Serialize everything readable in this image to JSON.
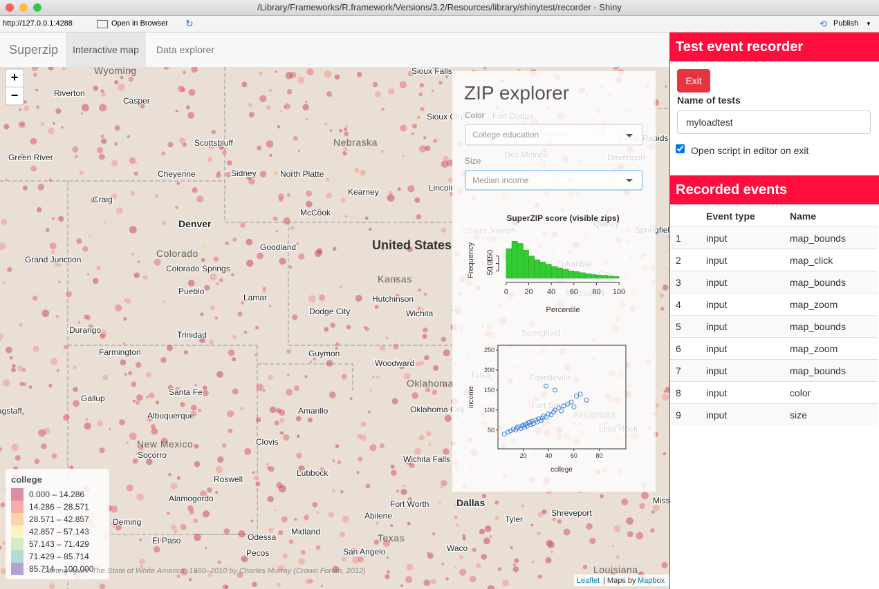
{
  "window": {
    "title": "/Library/Frameworks/R.framework/Versions/3.2/Resources/library/shinytest/recorder - Shiny"
  },
  "toolbar": {
    "url": "http://127.0.0.1:4288",
    "open": "Open in Browser",
    "publish": "Publish"
  },
  "app": {
    "brand": "Superzip",
    "tabs": [
      "Interactive map",
      "Data explorer"
    ]
  },
  "map": {
    "zoom_in": "+",
    "zoom_out": "−",
    "regions": [
      "Wyoming",
      "Nebraska",
      "United States",
      "Colorado",
      "Kansas",
      "Oklahoma",
      "New Mexico",
      "Texas",
      "Iowa",
      "Missouri",
      "Arkansas",
      "Louisiana"
    ],
    "cities": [
      "Sioux Falls",
      "Riverton",
      "Casper",
      "Scottsbluff",
      "Green River",
      "Cheyenne",
      "Sidney",
      "North Platte",
      "Kearney",
      "Lincoln",
      "Craig",
      "McCook",
      "Denver",
      "Goodland",
      "Grand Junction",
      "Colorado Springs",
      "Pueblo",
      "Lamar",
      "Hutchinson",
      "Dodge City",
      "Wichita",
      "Durango",
      "Trinidad",
      "Farmington",
      "Guymon",
      "Woodward",
      "Santa Fe",
      "Gallup",
      "Flagstaff",
      "Albuquerque",
      "Amarillo",
      "Oklahoma City",
      "Clovis",
      "Socorro",
      "Wichita Falls",
      "Lubbock",
      "Roswell",
      "Alamogordo",
      "Fort Worth",
      "Dallas",
      "Shreveport",
      "Abilene",
      "Deming",
      "Tyler",
      "Odessa",
      "Midland",
      "El Paso",
      "Waco",
      "Pecos",
      "San Angelo",
      "Sioux City",
      "Fort Dodge",
      "Des Moines",
      "Cedar Rapids",
      "Davenport",
      "Saint Joseph",
      "Quincy",
      "Springfield",
      "Columbia",
      "Jefferson City",
      "Springfield",
      "Tulsa",
      "Fayetteville",
      "Fort Smith",
      "Little Rock",
      "Miss"
    ],
    "attribution": "Coming Apart: The State of White America, 1960–2010 by Charles Murray (Crown Forum, 2012)",
    "leaflet": "Leaflet",
    "maps_by": "| Maps by",
    "mapbox": "Mapbox"
  },
  "panel": {
    "title": "ZIP explorer",
    "color_label": "Color",
    "color_value": "College education",
    "size_label": "Size",
    "size_value": "Median income"
  },
  "histogram": {
    "type": "histogram",
    "title": "SuperZIP score (visible zips)",
    "x_label": "Percentile",
    "y_label": "Frequency",
    "color": "#33cc33",
    "bins": [
      0,
      5,
      10,
      15,
      20,
      25,
      30,
      35,
      40,
      45,
      50,
      55,
      60,
      65,
      70,
      75,
      80,
      85,
      90,
      95,
      100
    ],
    "values": [
      200,
      250,
      235,
      190,
      150,
      125,
      110,
      95,
      80,
      70,
      60,
      50,
      45,
      38,
      30,
      25,
      22,
      20,
      15,
      12
    ],
    "xlim": [
      -3,
      103
    ],
    "xticks": [
      0,
      20,
      40,
      60,
      80,
      100
    ],
    "ylim": [
      0,
      270
    ],
    "yticks": [
      50,
      100,
      150
    ]
  },
  "scatter": {
    "type": "scatter",
    "x_label": "college",
    "y_label": "income",
    "color": "#3b7de0",
    "x": [
      5,
      8,
      10,
      12,
      14,
      15,
      16,
      18,
      19,
      20,
      21,
      22,
      23,
      24,
      25,
      26,
      27,
      28,
      30,
      31,
      32,
      34,
      35,
      36,
      38,
      40,
      42,
      44,
      45,
      48,
      50,
      52,
      55,
      58,
      60,
      62,
      65,
      70,
      45,
      38
    ],
    "values": [
      40,
      45,
      48,
      52,
      50,
      55,
      58,
      54,
      60,
      62,
      57,
      65,
      60,
      68,
      70,
      64,
      72,
      66,
      75,
      70,
      78,
      74,
      80,
      85,
      82,
      90,
      88,
      95,
      100,
      105,
      98,
      110,
      115,
      120,
      108,
      135,
      140,
      125,
      150,
      160
    ],
    "xlim": [
      0,
      101
    ],
    "xticks": [
      20,
      40,
      60,
      80
    ],
    "ylim": [
      3,
      262
    ],
    "yticks": [
      50,
      100,
      150,
      200,
      250
    ]
  },
  "legend": {
    "title": "college",
    "items": [
      {
        "label": "0.000 – 14.286",
        "color": "#d8819b"
      },
      {
        "label": "14.286 – 28.571",
        "color": "#f5a4a0"
      },
      {
        "label": "28.571 – 42.857",
        "color": "#fbd0a0"
      },
      {
        "label": "42.857 – 57.143",
        "color": "#fdf2b8"
      },
      {
        "label": "57.143 – 71.429",
        "color": "#cfe9c0"
      },
      {
        "label": "71.429 – 85.714",
        "color": "#a9d8d2"
      },
      {
        "label": "85.714 – 100.000",
        "color": "#a99ad0"
      }
    ]
  },
  "recorder": {
    "title": "Test event recorder",
    "exit": "Exit",
    "name_label": "Name of tests",
    "name_value": "myloadtest",
    "checkbox": "Open script in editor on exit",
    "events_title": "Recorded events",
    "columns": [
      "Event type",
      "Name"
    ],
    "rows": [
      [
        1,
        "input",
        "map_bounds"
      ],
      [
        2,
        "input",
        "map_click"
      ],
      [
        3,
        "input",
        "map_bounds"
      ],
      [
        4,
        "input",
        "map_zoom"
      ],
      [
        5,
        "input",
        "map_bounds"
      ],
      [
        6,
        "input",
        "map_zoom"
      ],
      [
        7,
        "input",
        "map_bounds"
      ],
      [
        8,
        "input",
        "color"
      ],
      [
        9,
        "input",
        "size"
      ]
    ]
  }
}
